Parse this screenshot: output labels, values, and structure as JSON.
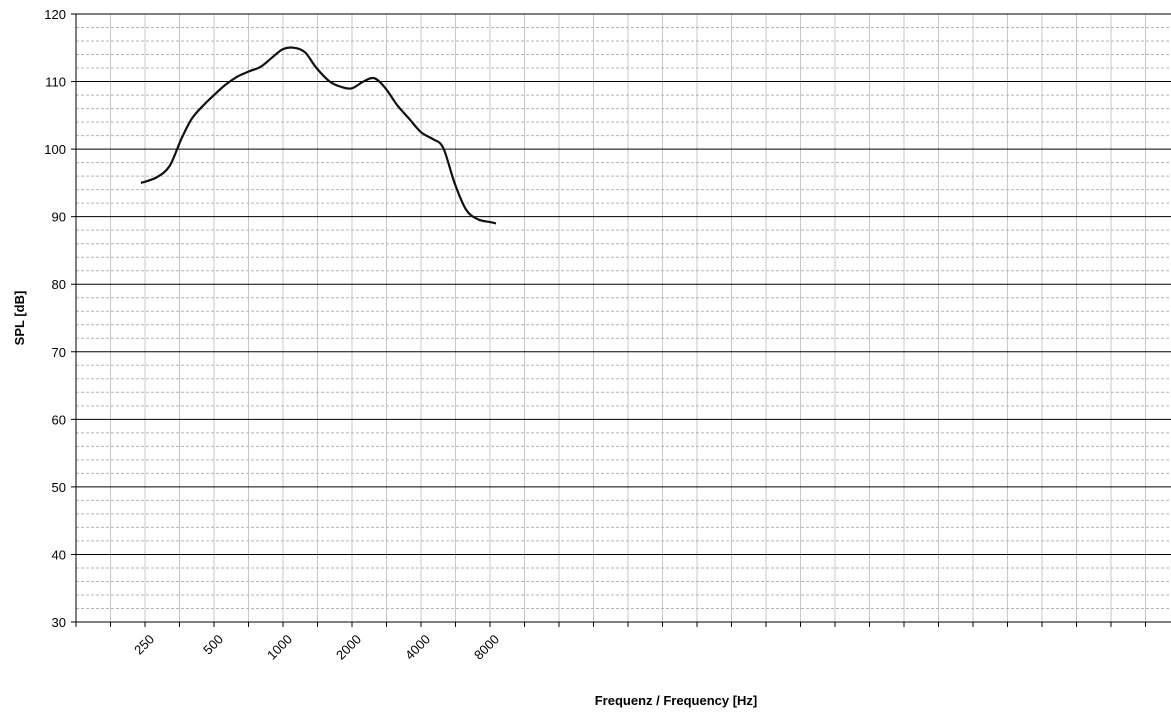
{
  "chart_data": {
    "type": "line",
    "xlabel": "Frequenz / Frequency [Hz]",
    "ylabel": "SPL [dB]",
    "x_scale": "log2",
    "ylim": [
      30,
      120
    ],
    "y_ticks": [
      30,
      40,
      50,
      60,
      70,
      80,
      90,
      100,
      110,
      120
    ],
    "x_tick_labels": [
      "250",
      "500",
      "1000",
      "2000",
      "4000",
      "8000"
    ],
    "grid": {
      "major_horizontal": true,
      "minor_horizontal": true,
      "vertical": true
    },
    "series": [
      {
        "x": [
          240,
          280,
          320,
          360,
          400,
          450,
          500,
          560,
          630,
          710,
          800,
          900,
          1000,
          1120,
          1250,
          1400,
          1600,
          1800,
          2000,
          2240,
          2500,
          2800,
          3150,
          3550,
          4000,
          4500,
          5000,
          5600,
          6300,
          7100,
          8000,
          8500
        ],
        "y": [
          95.0,
          95.8,
          97.5,
          101.5,
          104.5,
          106.5,
          108.0,
          109.5,
          110.7,
          111.5,
          112.2,
          113.6,
          114.8,
          115.0,
          114.3,
          112.0,
          110.0,
          109.2,
          109.0,
          110.0,
          110.5,
          109.0,
          106.5,
          104.5,
          102.5,
          101.5,
          100.2,
          95.0,
          91.0,
          89.6,
          89.2,
          89.0
        ]
      }
    ]
  }
}
